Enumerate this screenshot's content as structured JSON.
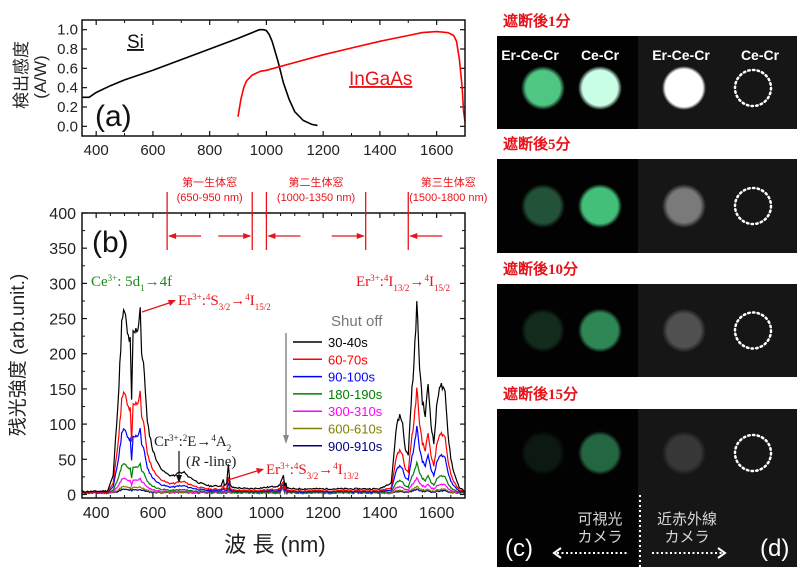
{
  "chart_data": [
    {
      "id": "a",
      "type": "line",
      "panel_label": "(a)",
      "xlabel": "",
      "ylabel_line1": "検出感度",
      "ylabel_line2": "(A/W)",
      "xlim": [
        350,
        1700
      ],
      "ylim": [
        -0.1,
        1.1
      ],
      "xticks": [
        400,
        600,
        800,
        1000,
        1200,
        1400,
        1600
      ],
      "yticks": [
        0.0,
        0.2,
        0.4,
        0.6,
        0.8,
        1.0
      ],
      "ytick_labels": [
        "0.0",
        "0.2",
        "0.4",
        "0.6",
        "0.8",
        "1.0"
      ],
      "series": [
        {
          "name": "Si",
          "color": "#000000",
          "x": [
            350,
            375,
            400,
            450,
            500,
            600,
            700,
            800,
            900,
            950,
            975,
            990,
            1000,
            1010,
            1020,
            1040,
            1060,
            1080,
            1100,
            1130,
            1160,
            1180
          ],
          "y": [
            0.3,
            0.3,
            0.35,
            0.42,
            0.48,
            0.58,
            0.69,
            0.8,
            0.91,
            0.97,
            1.0,
            1.0,
            0.99,
            0.95,
            0.88,
            0.68,
            0.45,
            0.28,
            0.15,
            0.06,
            0.02,
            0.01
          ]
        },
        {
          "name": "InGaAs",
          "color": "#ff0000",
          "x": [
            900,
            910,
            920,
            930,
            950,
            980,
            1000,
            1100,
            1200,
            1300,
            1400,
            1500,
            1550,
            1600,
            1640,
            1660,
            1670,
            1680,
            1690,
            1695,
            1700
          ],
          "y": [
            0.1,
            0.28,
            0.4,
            0.47,
            0.53,
            0.57,
            0.58,
            0.66,
            0.74,
            0.81,
            0.88,
            0.94,
            0.97,
            0.98,
            0.97,
            0.94,
            0.88,
            0.7,
            0.4,
            0.15,
            0.05
          ]
        }
      ]
    },
    {
      "id": "b",
      "type": "line",
      "panel_label": "(b)",
      "xlabel": "波 長 (nm)",
      "ylabel": "残光強度 (arb.unit.)",
      "xlim": [
        350,
        1700
      ],
      "ylim": [
        -5,
        400
      ],
      "xticks": [
        400,
        600,
        800,
        1000,
        1200,
        1400,
        1600
      ],
      "yticks": [
        0,
        50,
        100,
        150,
        200,
        250,
        300,
        350,
        400
      ],
      "legend_title": "Shut off",
      "legend_position": "center-right",
      "series": [
        {
          "name": "30-40s",
          "color": "#000000",
          "scale": 1.0
        },
        {
          "name": "60-70s",
          "color": "#ff0000",
          "scale": 0.55
        },
        {
          "name": "90-100s",
          "color": "#0000ff",
          "scale": 0.35
        },
        {
          "name": "180-190s",
          "color": "#008000",
          "scale": 0.16
        },
        {
          "name": "300-310s",
          "color": "#ff00ff",
          "scale": 0.08
        },
        {
          "name": "600-610s",
          "color": "#808000",
          "scale": 0.035
        },
        {
          "name": "900-910s",
          "color": "#000080",
          "scale": 0.02
        }
      ],
      "base_spectrum": {
        "x": [
          350,
          440,
          460,
          480,
          490,
          500,
          510,
          520,
          525,
          530,
          540,
          550,
          555,
          560,
          570,
          580,
          600,
          620,
          640,
          660,
          680,
          690,
          700,
          710,
          720,
          760,
          800,
          840,
          848,
          852,
          860,
          866,
          872,
          880,
          940,
          1000,
          1040,
          1055,
          1060,
          1065,
          1080,
          1200,
          1300,
          1400,
          1440,
          1460,
          1470,
          1480,
          1490,
          1500,
          1510,
          1520,
          1530,
          1540,
          1550,
          1560,
          1570,
          1580,
          1590,
          1600,
          1610,
          1620,
          1630,
          1640,
          1650,
          1660,
          1680,
          1700
        ],
        "y": [
          2,
          3,
          25,
          150,
          240,
          260,
          225,
          215,
          130,
          225,
          230,
          240,
          270,
          200,
          170,
          100,
          60,
          40,
          30,
          25,
          25,
          30,
          28,
          30,
          25,
          15,
          10,
          10,
          20,
          10,
          15,
          40,
          12,
          8,
          6,
          8,
          10,
          15,
          20,
          10,
          6,
          6,
          6,
          6,
          15,
          100,
          110,
          100,
          60,
          55,
          130,
          180,
          270,
          180,
          130,
          110,
          155,
          100,
          70,
          120,
          155,
          150,
          140,
          85,
          50,
          30,
          8,
          2
        ]
      },
      "windows": [
        {
          "label": "第一生体窓",
          "range_label": "(650-950 nm)",
          "range": [
            650,
            950
          ]
        },
        {
          "label": "第二生体窓",
          "range_label": "(1000-1350 nm)",
          "range": [
            1000,
            1350
          ]
        },
        {
          "label": "第三生体窓",
          "range_label": "(1500-1800 nm)",
          "range": [
            1500,
            1800
          ]
        }
      ],
      "annotations": {
        "ce": {
          "ion": "Ce",
          "charge": "3+",
          "text": ": 5d",
          "sub": "1",
          "tail": "→4f"
        },
        "er_green": {
          "ion": "Er",
          "charge": "3+",
          "colon": ":",
          "sup1": "4",
          "s": "S",
          "sub1": "3/2",
          "arrow": "→",
          "sup2": "4",
          "i": "I",
          "sub2": "15/2"
        },
        "er_ir": {
          "ion": "Er",
          "charge": "3+",
          "colon": ":",
          "sup1": "4",
          "s": "I",
          "sub1": "13/2",
          "arrow": "→",
          "sup2": "4",
          "i": "I",
          "sub2": "15/2"
        },
        "er_1um": {
          "ion": "Er",
          "charge": "3+",
          "colon": ":",
          "sup1": "4",
          "s": "S",
          "sub1": "3/2",
          "arrow": "→",
          "sup2": "4",
          "i": "I",
          "sub2": "13/2"
        },
        "cr": {
          "ion": "Cr",
          "charge": "3+",
          "colon": ":",
          "sup1": "2",
          "s": "E",
          "arrow": "→",
          "sup2": "4",
          "i": "A",
          "sub2": "2",
          "line2_italic": "R",
          "line2_rest": " -line)",
          "line2_open": "("
        }
      }
    }
  ],
  "photos": {
    "column_labels": [
      "Er-Ce-Cr",
      "Ce-Cr",
      "Er-Ce-Cr",
      "Ce-Cr"
    ],
    "rows": [
      {
        "title": "遮断後1分",
        "vis_er": 0.85,
        "vis_ce": 1.0,
        "nir_er": 1.0
      },
      {
        "title": "遮断後5分",
        "vis_er": 0.35,
        "vis_ce": 0.85,
        "nir_er": 0.6
      },
      {
        "title": "遮断後10分",
        "vis_er": 0.18,
        "vis_ce": 0.6,
        "nir_er": 0.35
      },
      {
        "title": "遮断後15分",
        "vis_er": 0.1,
        "vis_ce": 0.45,
        "nir_er": 0.2
      }
    ],
    "vis_camera": {
      "line1": "可視光",
      "line2": "カメラ",
      "panel_label": "(c)"
    },
    "nir_camera": {
      "line1": "近赤外線",
      "line2": "カメラ",
      "panel_label": "(d)"
    }
  },
  "colors": {
    "title_red": "#e8141b",
    "green_text": "#1a8a1a",
    "annot_red": "#e8141b"
  }
}
